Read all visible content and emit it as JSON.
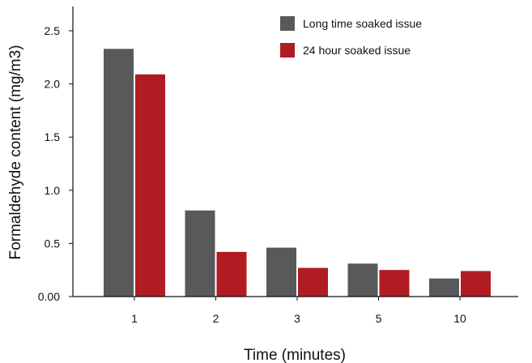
{
  "chart_data": {
    "type": "bar",
    "title": "",
    "xlabel": "Time (minutes)",
    "ylabel": "Formaldehyde content (mg/m3)",
    "categories": [
      "1",
      "2",
      "3",
      "5",
      "10"
    ],
    "series": [
      {
        "name": "Long time soaked issue",
        "color": "#58595b",
        "values": [
          2.33,
          0.81,
          0.46,
          0.31,
          0.17
        ]
      },
      {
        "name": "24 hour soaked issue",
        "color": "#b01c22",
        "values": [
          2.09,
          0.42,
          0.27,
          0.25,
          0.24
        ]
      }
    ],
    "y_ticks": [
      "0.00",
      "0.5",
      "1.0",
      "1.5",
      "2.0",
      "2.5"
    ],
    "ylim": [
      0,
      2.6
    ],
    "grid": false,
    "legend_position": "top-right"
  }
}
